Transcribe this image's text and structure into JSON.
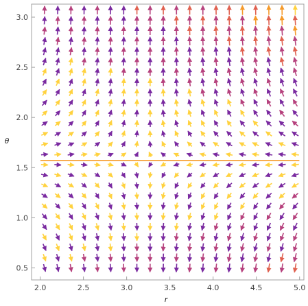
{
  "chart_data": {
    "type": "vector_field",
    "title": "",
    "xlabel": "r",
    "ylabel": "θ",
    "xlim": [
      1.9,
      5.05
    ],
    "ylim": [
      0.38,
      3.13
    ],
    "x_ticks": [
      2.0,
      2.5,
      3.0,
      3.5,
      4.0,
      4.5,
      5.0
    ],
    "x_tick_labels": [
      "2.0",
      "2.5",
      "3.0",
      "3.5",
      "4.0",
      "4.5",
      "5.0"
    ],
    "y_ticks": [
      0.5,
      1.0,
      1.5,
      2.0,
      2.5,
      3.0
    ],
    "y_tick_labels": [
      "0.5",
      "1.0",
      "1.5",
      "2.0",
      "2.5",
      "3.0"
    ],
    "grid": false,
    "field": {
      "dr": "(3 - r)·sin θ (approx.)",
      "dtheta": "r·cos²θ·(θ − π/2) (approx.)",
      "x_samples": 20,
      "y_samples": 26,
      "x_range": [
        2.05,
        4.95
      ],
      "y_range": [
        0.5,
        3.07
      ],
      "separatrix_theta": 1.5708,
      "vertical_separatrix_r": 3.2
    },
    "colormap": [
      "#ffd23f",
      "#f59a2a",
      "#e0604f",
      "#b6417d",
      "#7a2aa0"
    ]
  }
}
